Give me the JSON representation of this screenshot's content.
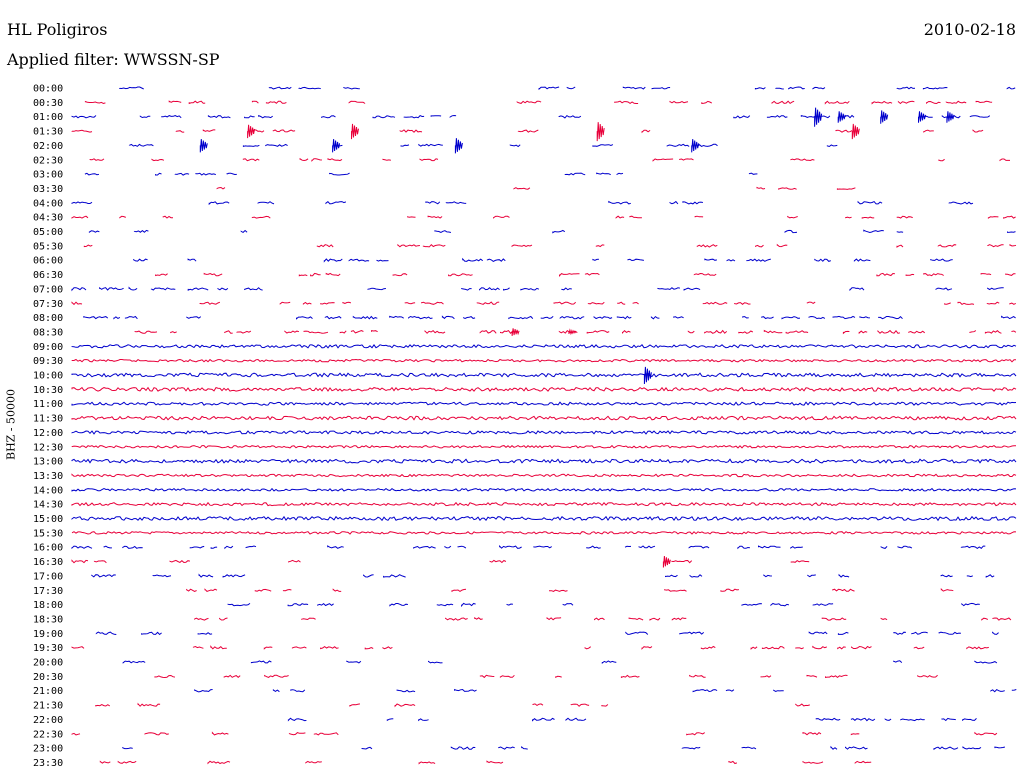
{
  "header": {
    "station": "HL Poligiros",
    "filter": "Applied filter: WWSSN-SP",
    "date": "2010-02-18",
    "channel": "BHZ - 50000"
  },
  "colors": {
    "even": "#0000cc",
    "odd": "#e8003a"
  },
  "chart_data": {
    "type": "line",
    "title": "HL Poligiros",
    "subtitle": "Applied filter: WWSSN-SP",
    "ylabel": "BHZ - 50000",
    "date": "2010-02-18",
    "ytick_labels": [
      "00:00",
      "00:30",
      "01:00",
      "01:30",
      "02:00",
      "02:30",
      "03:00",
      "03:30",
      "04:00",
      "04:30",
      "05:00",
      "05:30",
      "06:00",
      "06:30",
      "07:00",
      "07:30",
      "08:00",
      "08:30",
      "09:00",
      "09:30",
      "10:00",
      "10:30",
      "11:00",
      "11:30",
      "12:00",
      "12:30",
      "13:00",
      "13:30",
      "14:00",
      "14:30",
      "15:00",
      "15:30",
      "16:00",
      "16:30",
      "17:00",
      "17:30",
      "18:00",
      "18:30",
      "19:00",
      "19:30",
      "20:00",
      "20:30",
      "21:00",
      "21:30",
      "22:00",
      "22:30",
      "23:00",
      "23:30"
    ],
    "series": [
      {
        "continuous": false,
        "density": 0.28,
        "amp": 1.0,
        "seed": 1
      },
      {
        "continuous": false,
        "density": 0.36,
        "amp": 1.2,
        "seed": 2
      },
      {
        "continuous": false,
        "density": 0.3,
        "amp": 1.2,
        "seed": 3,
        "events": [
          {
            "pos": 0.79,
            "amp": 10
          },
          {
            "pos": 0.815,
            "amp": 6
          },
          {
            "pos": 0.86,
            "amp": 7
          },
          {
            "pos": 0.9,
            "amp": 6
          },
          {
            "pos": 0.93,
            "amp": 6
          }
        ]
      },
      {
        "continuous": false,
        "density": 0.3,
        "amp": 1.2,
        "seed": 4,
        "events": [
          {
            "pos": 0.19,
            "amp": 7
          },
          {
            "pos": 0.3,
            "amp": 8
          },
          {
            "pos": 0.56,
            "amp": 10
          },
          {
            "pos": 0.83,
            "amp": 8
          }
        ]
      },
      {
        "continuous": false,
        "density": 0.28,
        "amp": 1.2,
        "seed": 5,
        "events": [
          {
            "pos": 0.14,
            "amp": 7
          },
          {
            "pos": 0.28,
            "amp": 7
          },
          {
            "pos": 0.41,
            "amp": 8
          },
          {
            "pos": 0.66,
            "amp": 7
          }
        ]
      },
      {
        "continuous": false,
        "density": 0.3,
        "amp": 1.0,
        "seed": 6
      },
      {
        "continuous": false,
        "density": 0.26,
        "amp": 1.0,
        "seed": 7
      },
      {
        "continuous": false,
        "density": 0.22,
        "amp": 1.0,
        "seed": 8
      },
      {
        "continuous": false,
        "density": 0.3,
        "amp": 1.2,
        "seed": 9
      },
      {
        "continuous": false,
        "density": 0.3,
        "amp": 1.0,
        "seed": 10
      },
      {
        "continuous": false,
        "density": 0.3,
        "amp": 1.2,
        "seed": 11
      },
      {
        "continuous": false,
        "density": 0.36,
        "amp": 1.2,
        "seed": 12
      },
      {
        "continuous": false,
        "density": 0.38,
        "amp": 1.2,
        "seed": 13
      },
      {
        "continuous": false,
        "density": 0.34,
        "amp": 1.2,
        "seed": 14
      },
      {
        "continuous": false,
        "density": 0.36,
        "amp": 1.2,
        "seed": 15
      },
      {
        "continuous": false,
        "density": 0.4,
        "amp": 1.2,
        "seed": 16
      },
      {
        "continuous": false,
        "density": 0.62,
        "amp": 1.2,
        "seed": 17
      },
      {
        "continuous": false,
        "density": 0.6,
        "amp": 1.4,
        "seed": 18,
        "events": [
          {
            "pos": 0.47,
            "amp": 4
          },
          {
            "pos": 0.53,
            "amp": 2
          }
        ]
      },
      {
        "continuous": true,
        "amp": 1.5,
        "seed": 19
      },
      {
        "continuous": true,
        "amp": 1.2,
        "seed": 20
      },
      {
        "continuous": true,
        "amp": 1.8,
        "seed": 21,
        "events": [
          {
            "pos": 0.61,
            "amp": 9
          }
        ]
      },
      {
        "continuous": true,
        "amp": 1.8,
        "seed": 22
      },
      {
        "continuous": true,
        "amp": 1.5,
        "seed": 23
      },
      {
        "continuous": true,
        "amp": 1.8,
        "seed": 24
      },
      {
        "continuous": true,
        "amp": 1.5,
        "seed": 25
      },
      {
        "continuous": true,
        "amp": 1.2,
        "seed": 26
      },
      {
        "continuous": true,
        "amp": 1.8,
        "seed": 27
      },
      {
        "continuous": true,
        "amp": 1.2,
        "seed": 28
      },
      {
        "continuous": true,
        "amp": 1.2,
        "seed": 29
      },
      {
        "continuous": true,
        "amp": 1.5,
        "seed": 30
      },
      {
        "continuous": true,
        "amp": 1.8,
        "seed": 31
      },
      {
        "continuous": true,
        "amp": 1.2,
        "seed": 32
      },
      {
        "continuous": false,
        "density": 0.58,
        "amp": 1.2,
        "seed": 33
      },
      {
        "continuous": false,
        "density": 0.26,
        "amp": 1.2,
        "seed": 34,
        "events": [
          {
            "pos": 0.63,
            "amp": 6
          }
        ]
      },
      {
        "continuous": false,
        "density": 0.32,
        "amp": 1.2,
        "seed": 35
      },
      {
        "continuous": false,
        "density": 0.3,
        "amp": 1.2,
        "seed": 36
      },
      {
        "continuous": false,
        "density": 0.3,
        "amp": 1.2,
        "seed": 37
      },
      {
        "continuous": false,
        "density": 0.28,
        "amp": 1.2,
        "seed": 38
      },
      {
        "continuous": false,
        "density": 0.3,
        "amp": 1.2,
        "seed": 39
      },
      {
        "continuous": false,
        "density": 0.28,
        "amp": 1.2,
        "seed": 40
      },
      {
        "continuous": false,
        "density": 0.28,
        "amp": 1.2,
        "seed": 41
      },
      {
        "continuous": false,
        "density": 0.26,
        "amp": 1.2,
        "seed": 42
      },
      {
        "continuous": false,
        "density": 0.24,
        "amp": 1.2,
        "seed": 43
      },
      {
        "continuous": false,
        "density": 0.24,
        "amp": 1.2,
        "seed": 44
      },
      {
        "continuous": false,
        "density": 0.26,
        "amp": 1.2,
        "seed": 45
      },
      {
        "continuous": false,
        "density": 0.24,
        "amp": 1.2,
        "seed": 46
      },
      {
        "continuous": false,
        "density": 0.26,
        "amp": 1.2,
        "seed": 47
      },
      {
        "continuous": false,
        "density": 0.24,
        "amp": 1.2,
        "seed": 48
      }
    ]
  }
}
